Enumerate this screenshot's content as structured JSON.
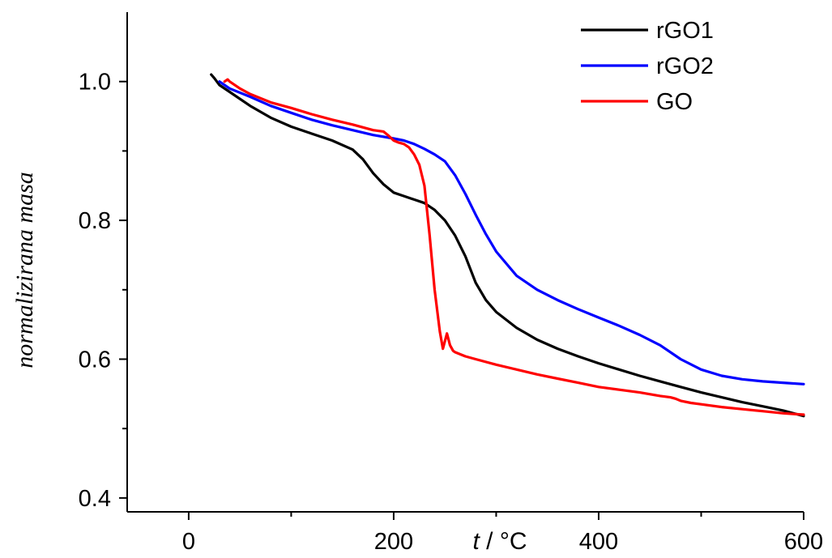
{
  "chart_data": {
    "type": "line",
    "xlabel": {
      "italic": "t",
      "rest": " / °C"
    },
    "ylabel": "normalizirana masa",
    "xlim": [
      -60,
      600
    ],
    "ylim": [
      0.38,
      1.1
    ],
    "xticks": [
      0,
      200,
      400,
      600
    ],
    "xtick_labels": [
      "0",
      "200",
      "400",
      "600"
    ],
    "yticks": [
      0.4,
      0.6,
      0.8,
      1.0
    ],
    "ytick_labels": [
      "0.4",
      "0.6",
      "0.8",
      "1.0"
    ],
    "legend_position": "top-right",
    "grid": false,
    "series": [
      {
        "name": "rGO1",
        "color": "#000000",
        "x": [
          22,
          25,
          30,
          40,
          60,
          80,
          100,
          120,
          140,
          160,
          170,
          180,
          190,
          200,
          210,
          220,
          230,
          240,
          250,
          260,
          270,
          280,
          290,
          300,
          320,
          340,
          360,
          380,
          400,
          420,
          440,
          460,
          480,
          500,
          520,
          540,
          560,
          580,
          600
        ],
        "y": [
          1.01,
          1.005,
          0.995,
          0.985,
          0.965,
          0.948,
          0.935,
          0.925,
          0.915,
          0.902,
          0.888,
          0.868,
          0.852,
          0.84,
          0.835,
          0.83,
          0.825,
          0.815,
          0.8,
          0.778,
          0.748,
          0.71,
          0.685,
          0.668,
          0.645,
          0.628,
          0.615,
          0.604,
          0.594,
          0.585,
          0.576,
          0.568,
          0.56,
          0.552,
          0.545,
          0.538,
          0.532,
          0.526,
          0.518
        ]
      },
      {
        "name": "rGO2",
        "color": "#0000ff",
        "x": [
          30,
          40,
          60,
          80,
          100,
          120,
          140,
          160,
          180,
          200,
          210,
          220,
          230,
          240,
          250,
          260,
          270,
          280,
          290,
          300,
          320,
          340,
          360,
          380,
          400,
          420,
          440,
          460,
          480,
          500,
          520,
          540,
          560,
          580,
          600
        ],
        "y": [
          1.0,
          0.99,
          0.978,
          0.965,
          0.955,
          0.945,
          0.937,
          0.93,
          0.923,
          0.918,
          0.915,
          0.91,
          0.903,
          0.895,
          0.885,
          0.865,
          0.838,
          0.808,
          0.78,
          0.755,
          0.72,
          0.7,
          0.685,
          0.672,
          0.66,
          0.648,
          0.635,
          0.62,
          0.6,
          0.585,
          0.576,
          0.571,
          0.568,
          0.566,
          0.564
        ]
      },
      {
        "name": "GO",
        "color": "#ff0000",
        "x": [
          35,
          38,
          40,
          50,
          60,
          80,
          100,
          120,
          140,
          160,
          180,
          190,
          195,
          200,
          205,
          210,
          215,
          220,
          225,
          230,
          235,
          240,
          245,
          248,
          252,
          255,
          258,
          260,
          265,
          270,
          280,
          300,
          320,
          340,
          360,
          380,
          400,
          420,
          440,
          460,
          470,
          475,
          480,
          490,
          500,
          520,
          540,
          560,
          580,
          600
        ],
        "y": [
          1.0,
          1.003,
          1.0,
          0.99,
          0.982,
          0.97,
          0.962,
          0.953,
          0.945,
          0.938,
          0.93,
          0.928,
          0.922,
          0.915,
          0.912,
          0.91,
          0.905,
          0.895,
          0.88,
          0.85,
          0.78,
          0.7,
          0.64,
          0.615,
          0.637,
          0.62,
          0.612,
          0.61,
          0.607,
          0.604,
          0.6,
          0.592,
          0.585,
          0.578,
          0.572,
          0.566,
          0.56,
          0.556,
          0.552,
          0.547,
          0.545,
          0.543,
          0.54,
          0.537,
          0.535,
          0.531,
          0.528,
          0.525,
          0.522,
          0.52
        ]
      }
    ]
  }
}
